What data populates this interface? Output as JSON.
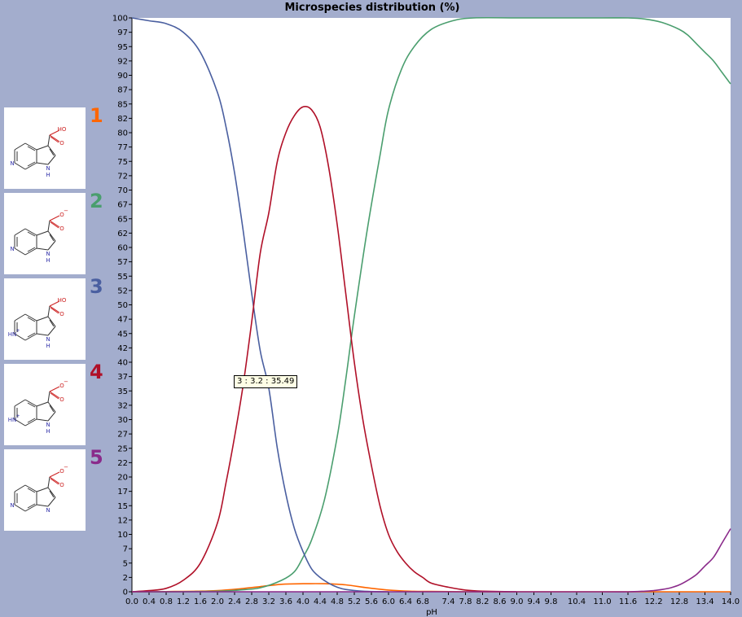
{
  "chart_data": {
    "type": "line",
    "title": "Microspecies distribution (%)",
    "xlabel": "pH",
    "ylabel": "",
    "xlim": [
      0,
      14
    ],
    "ylim": [
      0,
      100
    ],
    "x_ticks": [
      "0.0",
      "0.4",
      "0.8",
      "1.2",
      "1.6",
      "2.0",
      "2.4",
      "2.8",
      "3.2",
      "3.6",
      "4.0",
      "4.4",
      "4.8",
      "5.2",
      "5.6",
      "6.0",
      "6.4",
      "6.8",
      "7.4",
      "7.8",
      "8.2",
      "8.6",
      "9.0",
      "9.4",
      "9.8",
      "10.4",
      "11.0",
      "11.6",
      "12.2",
      "12.8",
      "13.4",
      "14.0"
    ],
    "y_ticks": [
      "0",
      "2",
      "5",
      "7",
      "10",
      "12",
      "15",
      "17",
      "20",
      "22",
      "25",
      "27",
      "30",
      "32",
      "35",
      "37",
      "40",
      "42",
      "45",
      "47",
      "50",
      "52",
      "55",
      "57",
      "60",
      "62",
      "65",
      "67",
      "70",
      "72",
      "75",
      "77",
      "80",
      "82",
      "85",
      "87",
      "90",
      "92",
      "95",
      "97",
      "100"
    ],
    "grid": false,
    "legend_position": "left",
    "series": [
      {
        "name": "1",
        "color": "#ff6600",
        "x": [
          0,
          0.5,
          1,
          1.5,
          2,
          2.5,
          3,
          3.5,
          4,
          4.5,
          5,
          5.5,
          6,
          6.5,
          7,
          8,
          9,
          10,
          11,
          12,
          13,
          14
        ],
        "values": [
          0,
          0,
          0.05,
          0.1,
          0.2,
          0.5,
          0.9,
          1.3,
          1.4,
          1.4,
          1.2,
          0.7,
          0.3,
          0.1,
          0.05,
          0,
          0,
          0,
          0,
          0,
          0,
          0
        ]
      },
      {
        "name": "2",
        "color": "#4a9e6e",
        "x": [
          0,
          1,
          2,
          2.5,
          3,
          3.5,
          3.8,
          4,
          4.2,
          4.5,
          4.8,
          5,
          5.2,
          5.5,
          5.8,
          6,
          6.3,
          6.6,
          7,
          7.5,
          8,
          9,
          10,
          11,
          11.6,
          12,
          12.4,
          12.8,
          13,
          13.2,
          13.4,
          13.6,
          13.8,
          14
        ],
        "values": [
          0,
          0,
          0.1,
          0.3,
          0.7,
          2,
          3.5,
          6,
          9,
          16,
          27,
          37,
          48,
          63,
          76,
          84,
          91,
          95,
          98,
          99.5,
          100,
          100,
          100,
          100,
          100,
          99.8,
          99.2,
          98,
          97,
          95.5,
          94,
          92.5,
          90.5,
          88.5
        ]
      },
      {
        "name": "3",
        "color": "#4a5fa0",
        "x": [
          0,
          0.4,
          0.8,
          1.2,
          1.6,
          2,
          2.2,
          2.4,
          2.6,
          2.8,
          3,
          3.2,
          3.4,
          3.6,
          3.8,
          4,
          4.2,
          4.4,
          4.6,
          4.8,
          5,
          5.4,
          6
        ],
        "values": [
          100,
          99.5,
          99,
          97.5,
          94,
          87,
          81,
          73,
          63,
          52,
          42,
          35.49,
          25,
          17,
          11,
          7,
          4,
          2.5,
          1.5,
          0.8,
          0.4,
          0.1,
          0
        ]
      },
      {
        "name": "4",
        "color": "#b01028",
        "x": [
          0,
          0.4,
          0.8,
          1.2,
          1.6,
          2,
          2.2,
          2.4,
          2.6,
          2.8,
          3,
          3.2,
          3.4,
          3.6,
          3.8,
          4,
          4.2,
          4.4,
          4.6,
          4.8,
          5,
          5.2,
          5.4,
          5.6,
          5.8,
          6,
          6.2,
          6.4,
          6.6,
          6.8,
          7,
          7.4,
          7.8,
          8.2,
          9
        ],
        "values": [
          0,
          0.2,
          0.6,
          2,
          5,
          12,
          19,
          27,
          36,
          47,
          59,
          66,
          75,
          80,
          83,
          84.5,
          84,
          81,
          74,
          64,
          52,
          40,
          30,
          22,
          15,
          10,
          7,
          5,
          3.5,
          2.5,
          1.5,
          0.8,
          0.3,
          0.1,
          0
        ]
      },
      {
        "name": "5",
        "color": "#8a2a8a",
        "x": [
          0,
          8,
          11,
          11.6,
          12,
          12.2,
          12.4,
          12.6,
          12.8,
          13,
          13.2,
          13.4,
          13.6,
          13.8,
          14
        ],
        "values": [
          0,
          0,
          0,
          0,
          0.1,
          0.2,
          0.4,
          0.7,
          1.2,
          2,
          3,
          4.5,
          6,
          8.5,
          11
        ]
      }
    ],
    "annotations": [
      {
        "text": "3 : 3.2 : 35.49",
        "x": 3.2,
        "y": 35.49,
        "series": "3"
      }
    ]
  },
  "legend": {
    "items": [
      {
        "number": "1",
        "color": "#ff6600",
        "substituent": "HO",
        "charge": "",
        "ring_n_charge": false,
        "nh": true
      },
      {
        "number": "2",
        "color": "#4a9e6e",
        "substituent": "O",
        "charge": "−",
        "ring_n_charge": false,
        "nh": true
      },
      {
        "number": "3",
        "color": "#4a5fa0",
        "substituent": "HO",
        "charge": "",
        "ring_n_charge": true,
        "nh": true
      },
      {
        "number": "4",
        "color": "#b01028",
        "substituent": "O",
        "charge": "−",
        "ring_n_charge": true,
        "nh": true
      },
      {
        "number": "5",
        "color": "#8a2a8a",
        "substituent": "O",
        "charge": "−",
        "ring_n_charge": false,
        "nh": false
      }
    ],
    "labels": {
      "nitrogen": "N",
      "hydrogen": "H",
      "ring_nh": "HN",
      "plus": "+"
    }
  },
  "tooltip": {
    "text": "3 : 3.2 : 35.49"
  }
}
